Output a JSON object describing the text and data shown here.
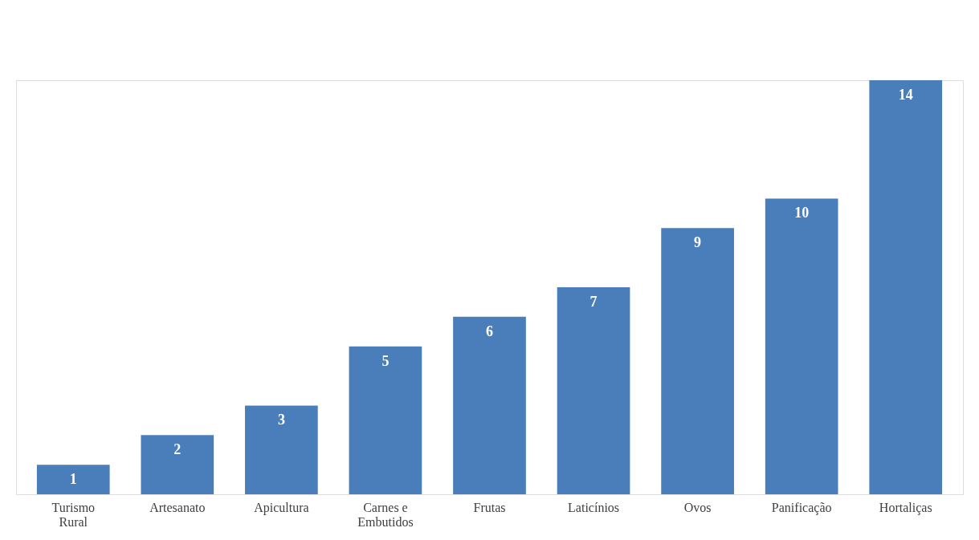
{
  "chart_data": {
    "type": "bar",
    "categories": [
      "Turismo Rural",
      "Artesanato",
      "Apicultura",
      "Carnes e Embutidos",
      "Frutas",
      "Laticínios",
      "Ovos",
      "Panificação",
      "Hortaliças"
    ],
    "values": [
      1,
      2,
      3,
      5,
      6,
      7,
      9,
      10,
      14
    ],
    "color": "#4a7ebb",
    "data_labels": true,
    "grid": false,
    "tick_labels": "x"
  }
}
